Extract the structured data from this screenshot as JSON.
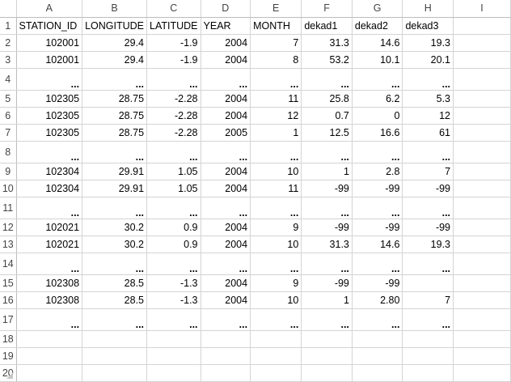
{
  "columns": [
    "A",
    "B",
    "C",
    "D",
    "E",
    "F",
    "G",
    "H",
    "I"
  ],
  "rows": [
    {
      "n": "1",
      "h": "normal",
      "cells": [
        [
          "STATION_ID",
          "txt"
        ],
        [
          "LONGITUDE",
          "txt"
        ],
        [
          "LATITUDE",
          "txt"
        ],
        [
          "YEAR",
          "txt"
        ],
        [
          "MONTH",
          "txt"
        ],
        [
          "dekad1",
          "txt"
        ],
        [
          "dekad2",
          "txt"
        ],
        [
          "dekad3",
          "txt"
        ],
        [
          "",
          ""
        ]
      ]
    },
    {
      "n": "2",
      "h": "normal",
      "cells": [
        [
          "102001",
          "num"
        ],
        [
          "29.4",
          "num"
        ],
        [
          "-1.9",
          "num"
        ],
        [
          "2004",
          "num"
        ],
        [
          "7",
          "num"
        ],
        [
          "31.3",
          "num"
        ],
        [
          "14.6",
          "num"
        ],
        [
          "19.3",
          "num"
        ],
        [
          "",
          ""
        ]
      ]
    },
    {
      "n": "3",
      "h": "normal",
      "cells": [
        [
          "102001",
          "num"
        ],
        [
          "29.4",
          "num"
        ],
        [
          "-1.9",
          "num"
        ],
        [
          "2004",
          "num"
        ],
        [
          "8",
          "num"
        ],
        [
          "53.2",
          "num"
        ],
        [
          "10.1",
          "num"
        ],
        [
          "20.1",
          "num"
        ],
        [
          "",
          ""
        ]
      ]
    },
    {
      "n": "4",
      "h": "tall",
      "cells": [
        [
          "...",
          "ell"
        ],
        [
          "...",
          "ell"
        ],
        [
          "...",
          "ell"
        ],
        [
          "...",
          "ell"
        ],
        [
          "...",
          "ell"
        ],
        [
          "...",
          "ell"
        ],
        [
          "...",
          "ell"
        ],
        [
          "...",
          "ell"
        ],
        [
          "",
          ""
        ]
      ]
    },
    {
      "n": "5",
      "h": "normal",
      "cells": [
        [
          "102305",
          "num"
        ],
        [
          "28.75",
          "num"
        ],
        [
          "-2.28",
          "num"
        ],
        [
          "2004",
          "num"
        ],
        [
          "11",
          "num"
        ],
        [
          "25.8",
          "num"
        ],
        [
          "6.2",
          "num"
        ],
        [
          "5.3",
          "num"
        ],
        [
          "",
          ""
        ]
      ]
    },
    {
      "n": "6",
      "h": "normal",
      "cells": [
        [
          "102305",
          "num"
        ],
        [
          "28.75",
          "num"
        ],
        [
          "-2.28",
          "num"
        ],
        [
          "2004",
          "num"
        ],
        [
          "12",
          "num"
        ],
        [
          "0.7",
          "num"
        ],
        [
          "0",
          "num"
        ],
        [
          "12",
          "num"
        ],
        [
          "",
          ""
        ]
      ]
    },
    {
      "n": "7",
      "h": "normal",
      "cells": [
        [
          "102305",
          "num"
        ],
        [
          "28.75",
          "num"
        ],
        [
          "-2.28",
          "num"
        ],
        [
          "2005",
          "num"
        ],
        [
          "1",
          "num"
        ],
        [
          "12.5",
          "num"
        ],
        [
          "16.6",
          "num"
        ],
        [
          "61",
          "num"
        ],
        [
          "",
          ""
        ]
      ]
    },
    {
      "n": "8",
      "h": "tall",
      "cells": [
        [
          "...",
          "ell"
        ],
        [
          "...",
          "ell"
        ],
        [
          "...",
          "ell"
        ],
        [
          "...",
          "ell"
        ],
        [
          "...",
          "ell"
        ],
        [
          "...",
          "ell"
        ],
        [
          "...",
          "ell"
        ],
        [
          "...",
          "ell"
        ],
        [
          "",
          ""
        ]
      ]
    },
    {
      "n": "9",
      "h": "normal",
      "cells": [
        [
          "102304",
          "num"
        ],
        [
          "29.91",
          "num"
        ],
        [
          "1.05",
          "num"
        ],
        [
          "2004",
          "num"
        ],
        [
          "10",
          "num"
        ],
        [
          "1",
          "num"
        ],
        [
          "2.8",
          "num"
        ],
        [
          "7",
          "num"
        ],
        [
          "",
          ""
        ]
      ]
    },
    {
      "n": "10",
      "h": "normal",
      "cells": [
        [
          "102304",
          "num"
        ],
        [
          "29.91",
          "num"
        ],
        [
          "1.05",
          "num"
        ],
        [
          "2004",
          "num"
        ],
        [
          "11",
          "num"
        ],
        [
          "-99",
          "num"
        ],
        [
          "-99",
          "num"
        ],
        [
          "-99",
          "num"
        ],
        [
          "",
          ""
        ]
      ]
    },
    {
      "n": "11",
      "h": "tall",
      "cells": [
        [
          "...",
          "ell"
        ],
        [
          "...",
          "ell"
        ],
        [
          "...",
          "ell"
        ],
        [
          "...",
          "ell"
        ],
        [
          "...",
          "ell"
        ],
        [
          "...",
          "ell"
        ],
        [
          "...",
          "ell"
        ],
        [
          "...",
          "ell"
        ],
        [
          "",
          ""
        ]
      ]
    },
    {
      "n": "12",
      "h": "normal",
      "cells": [
        [
          "102021",
          "num"
        ],
        [
          "30.2",
          "num"
        ],
        [
          "0.9",
          "num"
        ],
        [
          "2004",
          "num"
        ],
        [
          "9",
          "num"
        ],
        [
          "-99",
          "num"
        ],
        [
          "-99",
          "num"
        ],
        [
          "-99",
          "num"
        ],
        [
          "",
          ""
        ]
      ]
    },
    {
      "n": "13",
      "h": "normal",
      "cells": [
        [
          "102021",
          "num"
        ],
        [
          "30.2",
          "num"
        ],
        [
          "0.9",
          "num"
        ],
        [
          "2004",
          "num"
        ],
        [
          "10",
          "num"
        ],
        [
          "31.3",
          "num"
        ],
        [
          "14.6",
          "num"
        ],
        [
          "19.3",
          "num"
        ],
        [
          "",
          ""
        ]
      ]
    },
    {
      "n": "14",
      "h": "tall",
      "cells": [
        [
          "...",
          "ell"
        ],
        [
          "...",
          "ell"
        ],
        [
          "...",
          "ell"
        ],
        [
          "...",
          "ell"
        ],
        [
          "...",
          "ell"
        ],
        [
          "...",
          "ell"
        ],
        [
          "...",
          "ell"
        ],
        [
          "...",
          "ell"
        ],
        [
          "",
          ""
        ]
      ]
    },
    {
      "n": "15",
      "h": "normal",
      "cells": [
        [
          "102308",
          "num"
        ],
        [
          "28.5",
          "num"
        ],
        [
          "-1.3",
          "num"
        ],
        [
          "2004",
          "num"
        ],
        [
          "9",
          "num"
        ],
        [
          "-99",
          "num"
        ],
        [
          "-99",
          "num"
        ],
        [
          "",
          "num"
        ],
        [
          "",
          ""
        ]
      ]
    },
    {
      "n": "16",
      "h": "normal",
      "cells": [
        [
          "102308",
          "num"
        ],
        [
          "28.5",
          "num"
        ],
        [
          "-1.3",
          "num"
        ],
        [
          "2004",
          "num"
        ],
        [
          "10",
          "num"
        ],
        [
          "1",
          "num"
        ],
        [
          "2.80",
          "num"
        ],
        [
          "7",
          "num"
        ],
        [
          "",
          ""
        ]
      ]
    },
    {
      "n": "17",
      "h": "tall",
      "cells": [
        [
          "...",
          "ell"
        ],
        [
          "...",
          "ell"
        ],
        [
          "...",
          "ell"
        ],
        [
          "...",
          "ell"
        ],
        [
          "...",
          "ell"
        ],
        [
          "...",
          "ell"
        ],
        [
          "...",
          "ell"
        ],
        [
          "...",
          "ell"
        ],
        [
          "",
          ""
        ]
      ]
    },
    {
      "n": "18",
      "h": "normal",
      "cells": [
        [
          "",
          ""
        ],
        [
          "",
          ""
        ],
        [
          "",
          ""
        ],
        [
          "",
          ""
        ],
        [
          "",
          ""
        ],
        [
          "",
          ""
        ],
        [
          "",
          ""
        ],
        [
          "",
          ""
        ],
        [
          "",
          ""
        ]
      ]
    },
    {
      "n": "19",
      "h": "normal",
      "cells": [
        [
          "",
          ""
        ],
        [
          "",
          ""
        ],
        [
          "",
          ""
        ],
        [
          "",
          ""
        ],
        [
          "",
          ""
        ],
        [
          "",
          ""
        ],
        [
          "",
          ""
        ],
        [
          "",
          ""
        ],
        [
          "",
          ""
        ]
      ]
    },
    {
      "n": "20",
      "h": "normal",
      "cells": [
        [
          "",
          ""
        ],
        [
          "",
          ""
        ],
        [
          "",
          ""
        ],
        [
          "",
          ""
        ],
        [
          "",
          ""
        ],
        [
          "",
          ""
        ],
        [
          "",
          ""
        ],
        [
          "",
          ""
        ],
        [
          "",
          ""
        ]
      ]
    }
  ],
  "colors": {
    "ellipsis": "#c00000",
    "gridline": "#d4d4d4",
    "header_border": "#bdbdbd"
  }
}
